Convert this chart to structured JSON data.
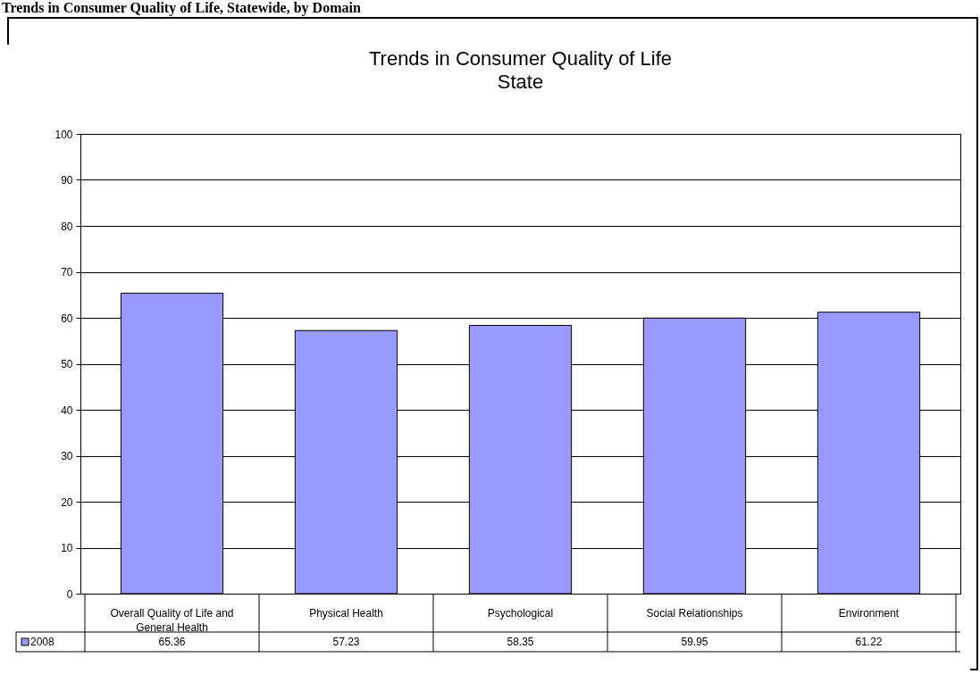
{
  "chart_data": {
    "type": "bar",
    "title": "Trends in Consumer Quality of Life",
    "subtitle": "State",
    "annotations": [
      "Trends in Consumer Quality of Life, Statewide, by Domain"
    ],
    "categories": [
      "Overall Quality of Life and General Health",
      "Physical Health",
      "Psychological",
      "Social Relationships",
      "Environment"
    ],
    "series": [
      {
        "name": "2008",
        "color": "#9999ff",
        "values": [
          65.36,
          57.23,
          58.35,
          59.95,
          61.22
        ]
      }
    ],
    "ylim": [
      0,
      100
    ],
    "yticks": [
      0,
      10,
      20,
      30,
      40,
      50,
      60,
      70,
      80,
      90,
      100
    ],
    "grid": "y",
    "legend": "bottom",
    "data_labels": true
  }
}
